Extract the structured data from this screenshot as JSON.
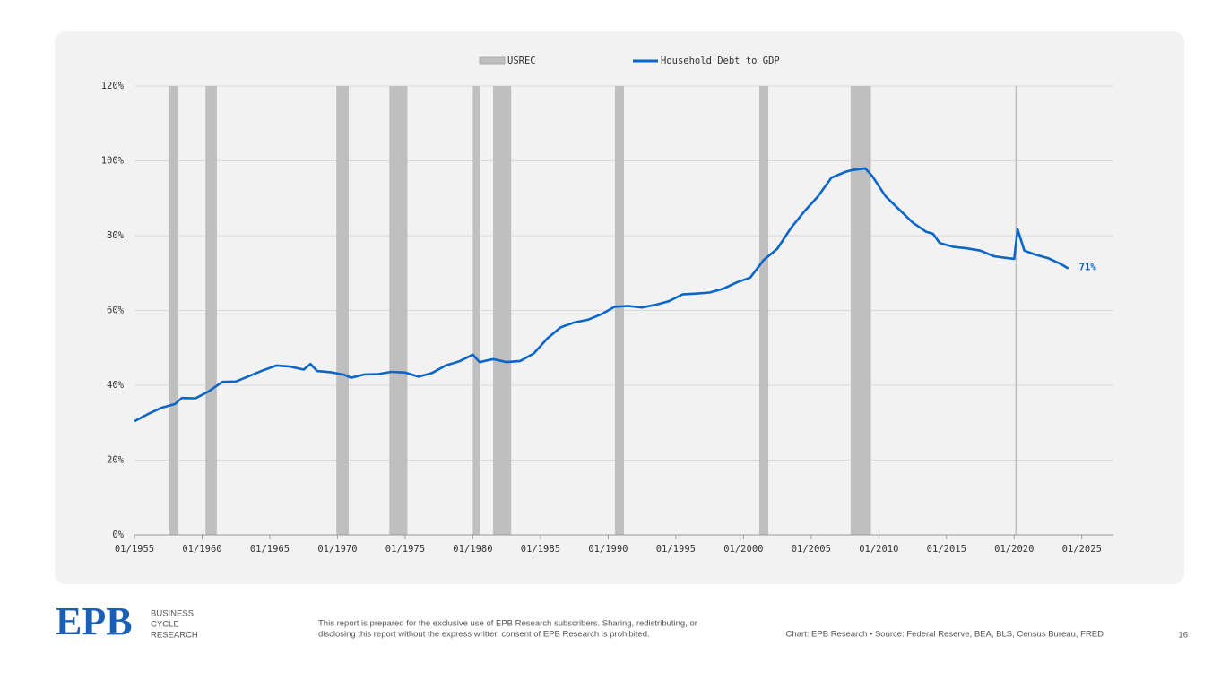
{
  "chart_data": {
    "type": "line",
    "xlim": [
      "1955-01",
      "2027-05"
    ],
    "xticks": [
      {
        "value": "1955-01",
        "label": "01/1955"
      },
      {
        "value": "1960-01",
        "label": "01/1960"
      },
      {
        "value": "1965-01",
        "label": "01/1965"
      },
      {
        "value": "1970-01",
        "label": "01/1970"
      },
      {
        "value": "1975-01",
        "label": "01/1975"
      },
      {
        "value": "1980-01",
        "label": "01/1980"
      },
      {
        "value": "1985-01",
        "label": "01/1985"
      },
      {
        "value": "1990-01",
        "label": "01/1990"
      },
      {
        "value": "1995-01",
        "label": "01/1995"
      },
      {
        "value": "2000-01",
        "label": "01/2000"
      },
      {
        "value": "2005-01",
        "label": "01/2005"
      },
      {
        "value": "2010-01",
        "label": "01/2010"
      },
      {
        "value": "2015-01",
        "label": "01/2015"
      },
      {
        "value": "2020-01",
        "label": "01/2020"
      },
      {
        "value": "2025-01",
        "label": "01/2025"
      }
    ],
    "ylim": [
      0,
      120
    ],
    "yticks": [
      {
        "value": 0,
        "label": "0%"
      },
      {
        "value": 20,
        "label": "20%"
      },
      {
        "value": 40,
        "label": "40%"
      },
      {
        "value": 60,
        "label": "60%"
      },
      {
        "value": 80,
        "label": "80%"
      },
      {
        "value": 100,
        "label": "100%"
      },
      {
        "value": 120,
        "label": "120%"
      }
    ],
    "grid": true,
    "recessions": {
      "name": "USREC",
      "color": "#bfbfbf",
      "periods": [
        [
          "1957-08",
          "1958-04"
        ],
        [
          "1960-04",
          "1961-02"
        ],
        [
          "1969-12",
          "1970-11"
        ],
        [
          "1973-11",
          "1975-03"
        ],
        [
          "1980-01",
          "1980-07"
        ],
        [
          "1981-07",
          "1982-11"
        ],
        [
          "1990-07",
          "1991-03"
        ],
        [
          "2001-03",
          "2001-11"
        ],
        [
          "2007-12",
          "2009-06"
        ],
        [
          "2020-02",
          "2020-04"
        ]
      ]
    },
    "x": [
      "1955-01",
      "1956-01",
      "1957-01",
      "1958-01",
      "1958-07",
      "1959-07",
      "1960-07",
      "1961-07",
      "1962-07",
      "1963-07",
      "1964-07",
      "1965-07",
      "1966-07",
      "1967-07",
      "1968-01",
      "1968-07",
      "1969-07",
      "1970-07",
      "1971-01",
      "1972-01",
      "1973-01",
      "1974-01",
      "1975-01",
      "1976-01",
      "1977-01",
      "1978-01",
      "1979-01",
      "1980-01",
      "1980-07",
      "1981-07",
      "1982-07",
      "1983-07",
      "1984-07",
      "1985-07",
      "1986-07",
      "1987-07",
      "1988-07",
      "1989-07",
      "1990-07",
      "1991-07",
      "1992-07",
      "1993-07",
      "1994-07",
      "1995-07",
      "1996-07",
      "1997-07",
      "1998-07",
      "1999-07",
      "2000-07",
      "2001-07",
      "2002-07",
      "2003-07",
      "2004-07",
      "2005-07",
      "2006-07",
      "2007-07",
      "2008-01",
      "2009-01",
      "2009-07",
      "2010-07",
      "2011-07",
      "2012-07",
      "2013-07",
      "2014-01",
      "2014-07",
      "2015-07",
      "2016-07",
      "2017-07",
      "2018-07",
      "2019-07",
      "2020-01",
      "2020-04",
      "2020-10",
      "2021-07",
      "2022-07",
      "2023-07",
      "2024-01"
    ],
    "series": [
      {
        "name": "Household Debt to GDP",
        "color": "#0a66c8",
        "values": [
          30.4,
          32.3,
          34.0,
          35.0,
          36.6,
          36.5,
          38.4,
          40.9,
          41.0,
          42.5,
          44.0,
          45.3,
          45.0,
          44.2,
          45.7,
          43.8,
          43.5,
          42.8,
          42.0,
          42.9,
          43.0,
          43.6,
          43.4,
          42.3,
          43.3,
          45.3,
          46.4,
          48.2,
          46.2,
          47.0,
          46.2,
          46.5,
          48.5,
          52.5,
          55.5,
          56.8,
          57.5,
          59.0,
          61.0,
          61.2,
          60.8,
          61.5,
          62.5,
          64.3,
          64.5,
          64.8,
          65.8,
          67.5,
          68.8,
          73.5,
          76.5,
          82.0,
          86.5,
          90.5,
          95.5,
          97.0,
          97.5,
          98.0,
          96.0,
          90.5,
          87.0,
          83.5,
          81.0,
          80.5,
          78.0,
          77.0,
          76.6,
          76.0,
          74.5,
          74.0,
          73.8,
          81.7,
          76.0,
          75.0,
          74.0,
          72.3,
          71.2
        ]
      }
    ],
    "annotation": "71%"
  },
  "footer": {
    "logo": "EPB",
    "tagline": [
      "BUSINESS",
      "CYCLE",
      "RESEARCH"
    ],
    "disclaimer": [
      "This report is prepared for the exclusive use of EPB Research subscribers. Sharing, redistributing, or",
      "disclosing this report without the express written consent of EPB Research is prohibited."
    ],
    "source": "Chart: EPB Research  •  Source: Federal Reserve, BEA, BLS, Census Bureau, FRED",
    "page": "16"
  }
}
